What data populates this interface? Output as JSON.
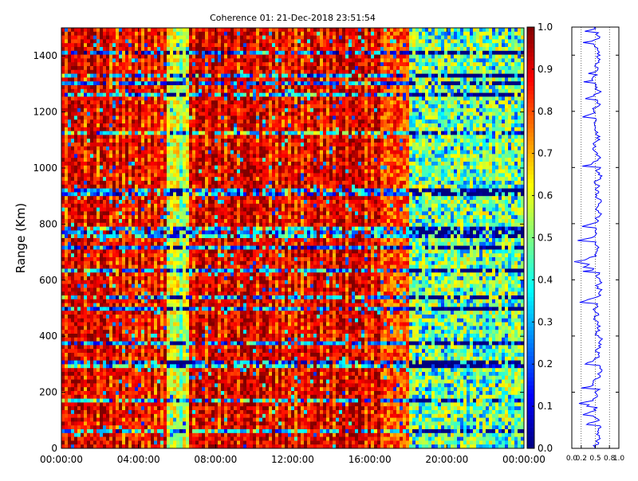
{
  "chart_data": {
    "type": "heatmap",
    "title": "Coherence 01: 21-Dec-2018 23:51:54",
    "ylabel": "Range (Km)",
    "xlabel": "",
    "x_ticks": [
      "00:00:00",
      "04:00:00",
      "08:00:00",
      "12:00:00",
      "16:00:00",
      "20:00:00",
      "00:00:00"
    ],
    "x_range_hours": [
      0,
      24
    ],
    "y_ticks": [
      0,
      200,
      400,
      600,
      800,
      1000,
      1200,
      1400
    ],
    "ylim": [
      0,
      1500
    ],
    "colorbar": {
      "colormap": "jet",
      "range": [
        0.0,
        1.0
      ],
      "ticks": [
        "0.0",
        "0.1",
        "0.2",
        "0.3",
        "0.4",
        "0.5",
        "0.6",
        "0.7",
        "0.8",
        "0.9",
        "1.0"
      ]
    },
    "time_column_average_by_hour": [
      {
        "hours": [
          0,
          5.5
        ],
        "coherence": 0.92
      },
      {
        "hours": [
          5.5,
          6.7
        ],
        "coherence": 0.6
      },
      {
        "hours": [
          6.7,
          16.5
        ],
        "coherence": 0.93
      },
      {
        "hours": [
          16.5,
          18
        ],
        "coherence": 0.8
      },
      {
        "hours": [
          18,
          24
        ],
        "coherence": 0.55
      }
    ],
    "profile": {
      "type": "line",
      "xlabel_ticks": [
        "0.0",
        "0.2",
        "0.5",
        "0.8",
        "1.0"
      ],
      "xlim": [
        0,
        1
      ],
      "ylim": [
        0,
        1500
      ],
      "gridlines_x": [
        0.2,
        0.5,
        0.8
      ],
      "mean_coherence": 0.5,
      "color": "#0000ff"
    }
  }
}
